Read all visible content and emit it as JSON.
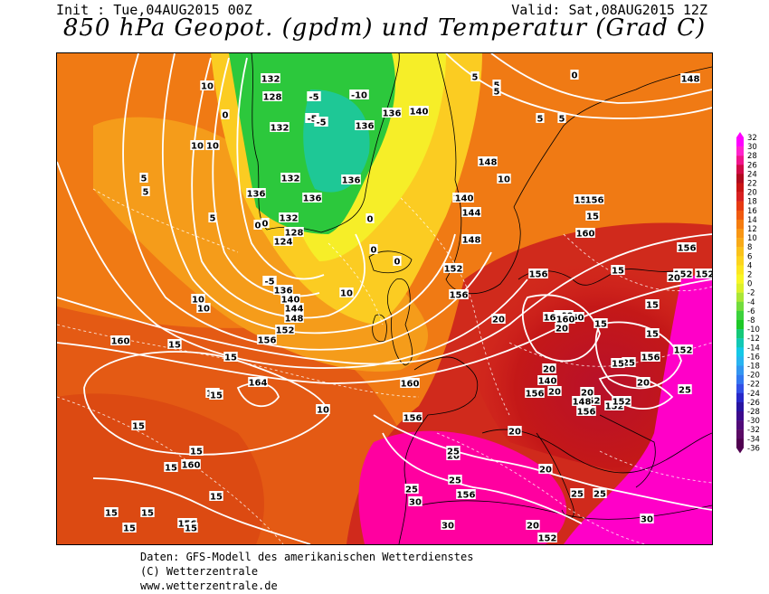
{
  "header": {
    "init": "Init : Tue,04AUG2015 00Z",
    "valid": "Valid: Sat,08AUG2015 12Z",
    "title": "850 hPa Geopot. (gpdm) und Temperatur (Grad C)"
  },
  "legend": {
    "ticks": [
      "32",
      "30",
      "28",
      "26",
      "24",
      "22",
      "20",
      "18",
      "16",
      "14",
      "12",
      "10",
      "8",
      "6",
      "4",
      "2",
      "0",
      "-2",
      "-4",
      "-6",
      "-8",
      "-10",
      "-12",
      "-14",
      "-16",
      "-18",
      "-20",
      "-22",
      "-24",
      "-26",
      "-28",
      "-30",
      "-32",
      "-34",
      "-36"
    ],
    "colors": [
      "#ff00ff",
      "#ff22cc",
      "#f0148c",
      "#d00a46",
      "#b00a1e",
      "#c81414",
      "#d82020",
      "#e63a12",
      "#f05a10",
      "#f57c0f",
      "#f89614",
      "#f8aa18",
      "#fac21a",
      "#fcd41e",
      "#fce620",
      "#f8f626",
      "#dcf02a",
      "#aae636",
      "#72dc3c",
      "#3cd23c",
      "#1ec828",
      "#14c878",
      "#12c8b4",
      "#14c8e6",
      "#28b4f0",
      "#3296f0",
      "#3278f0",
      "#3250e6",
      "#2828c8",
      "#2814a0",
      "#3c0a8c",
      "#500a78",
      "#5a0a64",
      "#500050"
    ]
  },
  "map": {
    "geopotential_labels": [
      {
        "text": "132"
      },
      {
        "text": "128"
      },
      {
        "text": "132"
      },
      {
        "text": "132"
      },
      {
        "text": "136"
      },
      {
        "text": "136"
      },
      {
        "text": "136"
      },
      {
        "text": "136"
      },
      {
        "text": "132"
      },
      {
        "text": "128"
      },
      {
        "text": "124"
      },
      {
        "text": "136"
      },
      {
        "text": "140"
      },
      {
        "text": "144"
      },
      {
        "text": "148"
      },
      {
        "text": "152"
      },
      {
        "text": "156"
      },
      {
        "text": "160"
      },
      {
        "text": "164"
      },
      {
        "text": "160"
      },
      {
        "text": "156"
      },
      {
        "text": "156"
      },
      {
        "text": "160"
      },
      {
        "text": "152"
      },
      {
        "text": "148"
      },
      {
        "text": "152"
      },
      {
        "text": "136"
      },
      {
        "text": "140"
      },
      {
        "text": "140"
      },
      {
        "text": "140"
      },
      {
        "text": "144"
      },
      {
        "text": "148"
      },
      {
        "text": "152"
      },
      {
        "text": "156"
      },
      {
        "text": "140"
      },
      {
        "text": "148"
      },
      {
        "text": "148"
      },
      {
        "text": "152"
      },
      {
        "text": "156"
      },
      {
        "text": "156"
      },
      {
        "text": "160"
      },
      {
        "text": "152"
      },
      {
        "text": "160"
      },
      {
        "text": "160"
      },
      {
        "text": "156"
      },
      {
        "text": "156"
      },
      {
        "text": "152"
      },
      {
        "text": "152"
      },
      {
        "text": "156"
      },
      {
        "text": "152"
      },
      {
        "text": "160"
      },
      {
        "text": "156"
      },
      {
        "text": "160"
      },
      {
        "text": "156"
      },
      {
        "text": "152"
      }
    ],
    "temperature_labels": [
      {
        "text": "10"
      },
      {
        "text": "10"
      },
      {
        "text": "10"
      },
      {
        "text": "5"
      },
      {
        "text": "5"
      },
      {
        "text": "5"
      },
      {
        "text": "0"
      },
      {
        "text": "0"
      },
      {
        "text": "-5"
      },
      {
        "text": "-5"
      },
      {
        "text": "-5"
      },
      {
        "text": "-10"
      },
      {
        "text": "0"
      },
      {
        "text": "0"
      },
      {
        "text": "0"
      },
      {
        "text": "0"
      },
      {
        "text": "-5"
      },
      {
        "text": "10"
      },
      {
        "text": "10"
      },
      {
        "text": "10"
      },
      {
        "text": "5"
      },
      {
        "text": "5"
      },
      {
        "text": "5"
      },
      {
        "text": "5"
      },
      {
        "text": "0"
      },
      {
        "text": "5"
      },
      {
        "text": "10"
      },
      {
        "text": "10"
      },
      {
        "text": "15"
      },
      {
        "text": "15"
      },
      {
        "text": "15"
      },
      {
        "text": "15"
      },
      {
        "text": "15"
      },
      {
        "text": "15"
      },
      {
        "text": "15"
      },
      {
        "text": "15"
      },
      {
        "text": "15"
      },
      {
        "text": "15"
      },
      {
        "text": "15"
      },
      {
        "text": "15"
      },
      {
        "text": "10"
      },
      {
        "text": "15"
      },
      {
        "text": "15"
      },
      {
        "text": "20"
      },
      {
        "text": "20"
      },
      {
        "text": "20"
      },
      {
        "text": "20"
      },
      {
        "text": "20"
      },
      {
        "text": "20"
      },
      {
        "text": "20"
      },
      {
        "text": "20"
      },
      {
        "text": "25"
      },
      {
        "text": "25"
      },
      {
        "text": "25"
      },
      {
        "text": "25"
      },
      {
        "text": "25"
      },
      {
        "text": "30"
      },
      {
        "text": "30"
      },
      {
        "text": "30"
      },
      {
        "text": "15"
      },
      {
        "text": "15"
      },
      {
        "text": "15"
      },
      {
        "text": "20"
      },
      {
        "text": "20"
      },
      {
        "text": "25"
      },
      {
        "text": "20"
      },
      {
        "text": "15"
      },
      {
        "text": "25"
      }
    ]
  },
  "footer": {
    "line1": "Daten: GFS-Modell des amerikanischen Wetterdienstes",
    "line2": "(C) Wetterzentrale",
    "line3": "www.wetterzentrale.de"
  }
}
